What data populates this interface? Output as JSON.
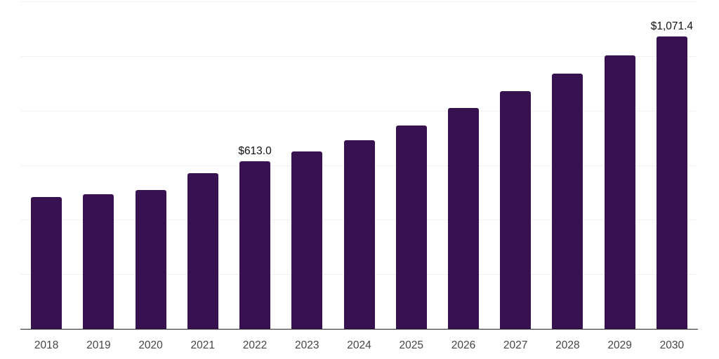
{
  "chart_data": {
    "type": "bar",
    "title": "",
    "xlabel": "",
    "ylabel": "",
    "categories": [
      "2018",
      "2019",
      "2020",
      "2021",
      "2022",
      "2023",
      "2024",
      "2025",
      "2026",
      "2027",
      "2028",
      "2029",
      "2030"
    ],
    "values": [
      483,
      493,
      508,
      570,
      613.0,
      651,
      692,
      745,
      809,
      870,
      936,
      1002,
      1071.4
    ],
    "annotations": [
      {
        "category": "2022",
        "text": "$613.0"
      },
      {
        "category": "2030",
        "text": "$1,071.4"
      }
    ],
    "ylim": [
      0,
      1200
    ],
    "gridline_step": 200,
    "grid": "horizontal-only",
    "legend": "none",
    "y_axis_labels_visible": false,
    "colors": {
      "bar": "#381150",
      "grid": "#F2F2F2",
      "axis": "#262626",
      "tick_label": "#454545",
      "annotation": "#111111",
      "background": "#FFFFFF"
    }
  }
}
